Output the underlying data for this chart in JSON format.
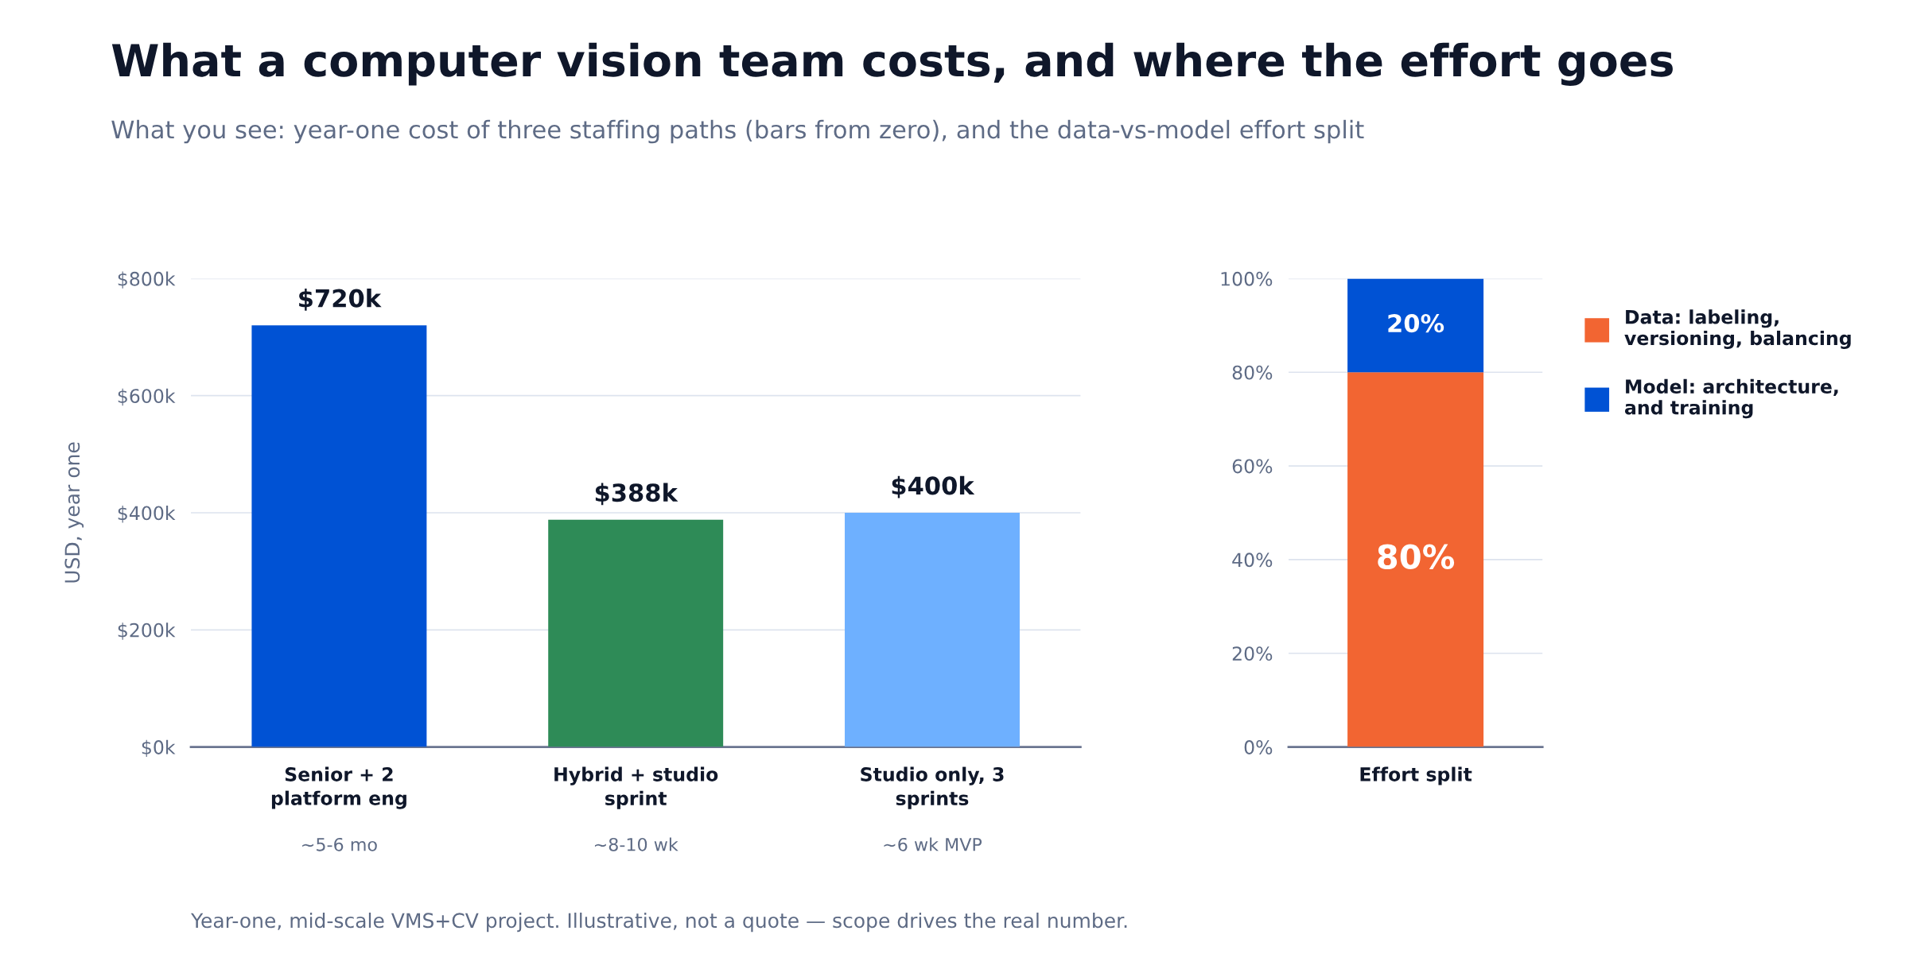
{
  "chart_data": [
    {
      "type": "bar",
      "title": "What a computer vision team costs, and where the effort goes",
      "subtitle": "What you see: year-one cost of three staffing paths (bars from zero), and the data-vs-model effort split",
      "ylabel": "USD, year one",
      "categories": [
        "Senior + 2\nplatform eng\n~5-6 mo",
        "Hybrid + studio\nsprint\n~8-10 wk",
        "Studio only, 3\nsprints\n~6 wk MVP"
      ],
      "values": [
        720,
        388,
        400
      ],
      "colors": [
        "#0052d4",
        "#2e8b57",
        "#6eb0ff"
      ],
      "value_labels": [
        "$720k",
        "$388k",
        "$400k"
      ],
      "ylim": [
        0,
        800
      ],
      "yticks": [
        {
          "value": 0,
          "label": "$0k"
        },
        {
          "value": 200,
          "label": "$200k"
        },
        {
          "value": 400,
          "label": "$400k"
        },
        {
          "value": 600,
          "label": "$600k"
        },
        {
          "value": 800,
          "label": "$800k"
        }
      ],
      "grid": "y",
      "legend": false,
      "annotations": [
        "Year-one, mid-scale VMS+CV project. Illustrative, not a quote — scope drives the real number."
      ]
    },
    {
      "type": "bar",
      "stacked": true,
      "categories": [
        "Effort split"
      ],
      "series": [
        {
          "name": "Data: labeling,\nversioning, balancing",
          "color": "#f26532",
          "values": [
            80
          ],
          "value_labels": [
            "80%"
          ]
        },
        {
          "name": "Model: architecture,\nand training",
          "color": "#0052d4",
          "values": [
            20
          ],
          "value_labels": [
            "20%"
          ]
        }
      ],
      "ylim": [
        0,
        100
      ],
      "yticks": [
        {
          "value": 0,
          "label": "0%"
        },
        {
          "value": 20,
          "label": "20%"
        },
        {
          "value": 40,
          "label": "40%"
        },
        {
          "value": 60,
          "label": "60%"
        },
        {
          "value": 80,
          "label": "80%"
        },
        {
          "value": 100,
          "label": "100%"
        }
      ],
      "grid": "y",
      "legend": "right"
    }
  ]
}
